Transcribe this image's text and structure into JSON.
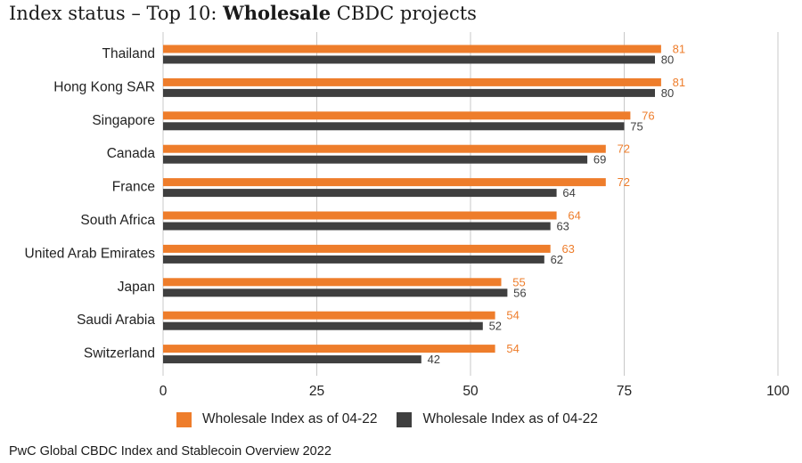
{
  "header": {
    "title_prefix": "Index status – Top 10: ",
    "title_bold": "Wholesale",
    "title_suffix": " CBDC projects"
  },
  "source": "PwC Global CBDC Index and Stablecoin Overview 2022",
  "colors": {
    "series1": "#ee7d2b",
    "series2": "#3f3f3f",
    "grid": "#c8c8c8"
  },
  "chart_data": {
    "type": "bar",
    "orientation": "horizontal",
    "title": "Index status – Top 10: Wholesale CBDC projects",
    "categories": [
      "Thailand",
      "Hong Kong SAR",
      "Singapore",
      "Canada",
      "France",
      "South Africa",
      "United Arab Emirates",
      "Japan",
      "Saudi Arabia",
      "Switzerland"
    ],
    "series": [
      {
        "name": "Wholesale Index as of 04-22",
        "color": "#ee7d2b",
        "values": [
          81,
          81,
          76,
          72,
          72,
          64,
          63,
          55,
          54,
          54
        ]
      },
      {
        "name": "Wholesale Index as of 04-22",
        "color": "#3f3f3f",
        "values": [
          80,
          80,
          75,
          69,
          64,
          63,
          62,
          56,
          52,
          42
        ]
      }
    ],
    "xlim": [
      0,
      100
    ],
    "xticks": [
      0,
      25,
      50,
      75,
      100
    ],
    "grid": true,
    "legend_position": "bottom"
  }
}
